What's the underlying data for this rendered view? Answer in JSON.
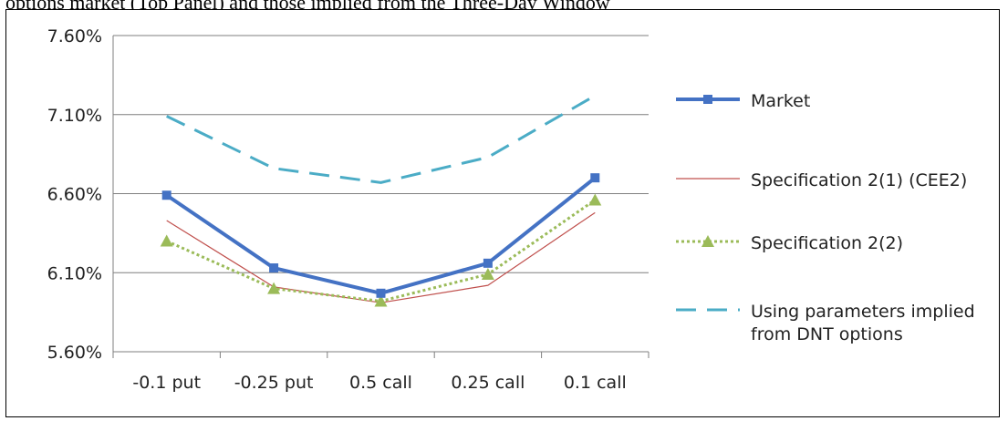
{
  "caption": "options market (Top Panel) and those implied from the Three-Day Window",
  "chart_data": {
    "type": "line",
    "categories": [
      "-0.1 put",
      "-0.25 put",
      "0.5 call",
      "0.25 call",
      "0.1 call"
    ],
    "ylim": [
      5.6,
      7.6
    ],
    "yticks": [
      5.6,
      6.1,
      6.6,
      7.1,
      7.6
    ],
    "ytick_labels": [
      "5.60%",
      "6.10%",
      "6.60%",
      "7.10%",
      "7.60%"
    ],
    "grid": true,
    "legend_position": "right",
    "series": [
      {
        "name": "Market",
        "values": [
          6.59,
          6.13,
          5.97,
          6.16,
          6.7
        ],
        "color": "#4472C4",
        "style": "solid-square-markers"
      },
      {
        "name": "Specification 2(1) (CEE2)",
        "values": [
          6.43,
          6.01,
          5.91,
          6.02,
          6.48
        ],
        "color": "#C0504D",
        "style": "thin-solid"
      },
      {
        "name": "Specification 2(2)",
        "values": [
          6.3,
          6.0,
          5.92,
          6.09,
          6.56
        ],
        "color": "#9BBB59",
        "style": "dotted-triangle-markers"
      },
      {
        "name": "Using parameters implied from DNT options",
        "values": [
          7.09,
          6.76,
          6.67,
          6.83,
          7.22
        ],
        "color": "#4BACC6",
        "style": "dashed"
      }
    ],
    "legend_lines": [
      [
        "Market"
      ],
      [
        "Specification 2(1) (CEE2)"
      ],
      [
        "Specification 2(2)"
      ],
      [
        "Using parameters implied",
        "from DNT options"
      ]
    ]
  }
}
